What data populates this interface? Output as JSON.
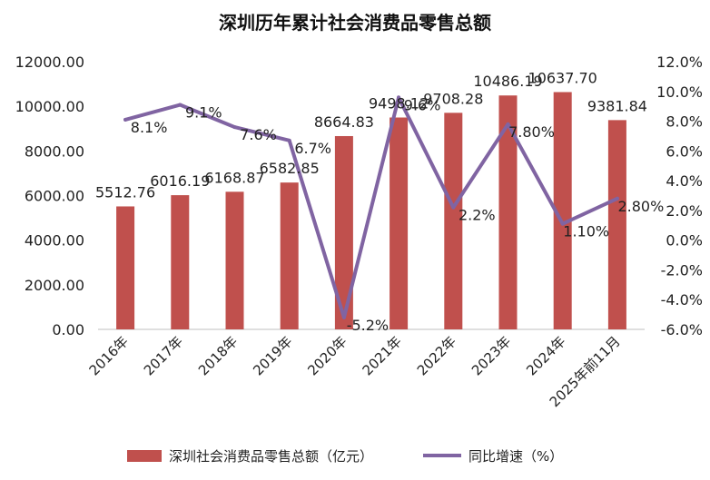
{
  "chart_data": {
    "type": "bar",
    "title": "深圳历年累计社会消费品零售总额",
    "categories": [
      "2016年",
      "2017年",
      "2018年",
      "2019年",
      "2020年",
      "2021年",
      "2022年",
      "2023年",
      "2024年",
      "2025年前11月"
    ],
    "series": [
      {
        "name": "深圳社会消费品零售总额（亿元）",
        "type": "bar",
        "axis": "left",
        "color": "#c0504d",
        "values": [
          5512.76,
          6016.19,
          6168.87,
          6582.85,
          8664.83,
          9498.12,
          9708.28,
          10486.19,
          10637.7,
          9381.84
        ],
        "labels": [
          "5512.76",
          "6016.19",
          "6168.87",
          "6582.85",
          "8664.83",
          "9498.12",
          "9708.28",
          "10486.19",
          "10637.70",
          "9381.84"
        ]
      },
      {
        "name": "同比增速（%）",
        "type": "line",
        "axis": "right",
        "color": "#8064a2",
        "values": [
          8.1,
          9.1,
          7.6,
          6.7,
          -5.2,
          9.6,
          2.2,
          7.8,
          1.1,
          2.8
        ],
        "labels": [
          "8.1%",
          "9.1%",
          "7.6%",
          "6.7%",
          "-5.2%",
          "9.6%",
          "2.2%",
          "7.80%",
          "1.10%",
          "2.80%"
        ]
      }
    ],
    "y_left": {
      "lim": [
        0,
        12000
      ],
      "ticks": [
        "0.00",
        "2000.00",
        "4000.00",
        "6000.00",
        "8000.00",
        "10000.00",
        "12000.00"
      ]
    },
    "y_right": {
      "lim": [
        -6,
        12
      ],
      "ticks": [
        "-6.0%",
        "-4.0%",
        "-2.0%",
        "0.0%",
        "2.0%",
        "4.0%",
        "6.0%",
        "8.0%",
        "10.0%",
        "12.0%"
      ]
    },
    "grid": false,
    "legend": "bottom"
  }
}
